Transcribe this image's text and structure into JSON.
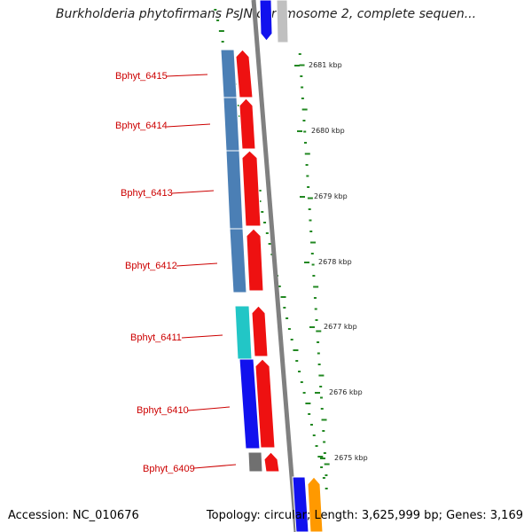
{
  "title": "Burkholderia phytofirmans PsJN chromosome 2, complete sequen...",
  "footer": {
    "accession": "Accession: NC_010676",
    "summary": "Topology: circular; Length: 3,625,999 bp; Genes: 3,169"
  },
  "genes": [
    {
      "label": "Bphyt_6415"
    },
    {
      "label": "Bphyt_6414"
    },
    {
      "label": "Bphyt_6413"
    },
    {
      "label": "Bphyt_6412"
    },
    {
      "label": "Bphyt_6411"
    },
    {
      "label": "Bphyt_6410"
    },
    {
      "label": "Bphyt_6409"
    }
  ],
  "scale_ticks": [
    {
      "label": "2681 kbp"
    },
    {
      "label": "2680 kbp"
    },
    {
      "label": "2679 kbp"
    },
    {
      "label": "2678 kbp"
    },
    {
      "label": "2677 kbp"
    },
    {
      "label": "2676 kbp"
    },
    {
      "label": "2675 kbp"
    }
  ],
  "colors": {
    "label_red": "#cc0000",
    "cds_red": "#ee1111",
    "steel_blue": "#4b7fb5",
    "cyan": "#22c6c6",
    "blue": "#1111ee",
    "gray": "#707070",
    "orange": "#ff9900",
    "light_gray": "#c0c0c0",
    "backbone_gray": "#808080",
    "gc_green": "#228822"
  }
}
